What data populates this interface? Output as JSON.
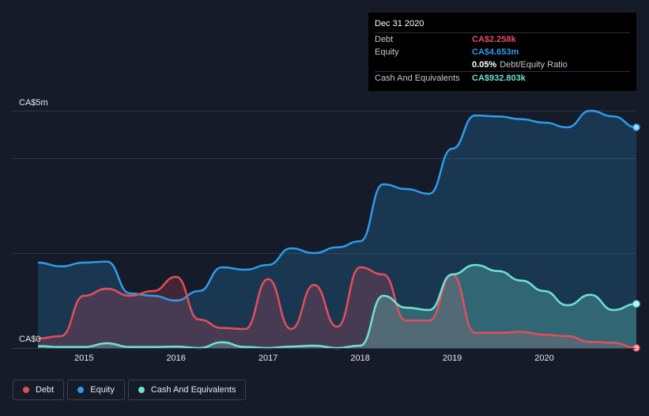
{
  "tooltip": {
    "date": "Dec 31 2020",
    "rows": [
      {
        "label": "Debt",
        "value": "CA$2.258k",
        "color": "#e64d5a"
      },
      {
        "label": "Equity",
        "value": "CA$4.653m",
        "color": "#2d9cea"
      },
      {
        "label": "",
        "value": "0.05%",
        "suffix": "Debt/Equity Ratio",
        "color": "#ffffff"
      },
      {
        "label": "Cash And Equivalents",
        "value": "CA$932.803k",
        "color": "#6ee3d1"
      }
    ]
  },
  "legend": [
    {
      "label": "Debt",
      "color": "#e64d5a"
    },
    {
      "label": "Equity",
      "color": "#2d9cea"
    },
    {
      "label": "Cash And Equivalents",
      "color": "#6ee3d1"
    }
  ],
  "chart_data": {
    "type": "area",
    "ylabel_top": "CA$5m",
    "ylabel_bottom": "CA$0",
    "ylim": [
      0,
      5
    ],
    "xlim": [
      2014.5,
      2021.0
    ],
    "x_ticks": [
      "2015",
      "2016",
      "2017",
      "2018",
      "2019",
      "2020"
    ],
    "x_tick_values": [
      2015,
      2016,
      2017,
      2018,
      2019,
      2020
    ],
    "units": "CA$ millions",
    "series": [
      {
        "name": "Equity",
        "color": "#2d9cea",
        "points": [
          [
            2014.5,
            1.8
          ],
          [
            2014.75,
            1.72
          ],
          [
            2015.0,
            1.8
          ],
          [
            2015.25,
            1.82
          ],
          [
            2015.5,
            1.15
          ],
          [
            2015.75,
            1.1
          ],
          [
            2016.0,
            1.0
          ],
          [
            2016.25,
            1.2
          ],
          [
            2016.5,
            1.7
          ],
          [
            2016.75,
            1.65
          ],
          [
            2017.0,
            1.75
          ],
          [
            2017.25,
            2.1
          ],
          [
            2017.5,
            2.0
          ],
          [
            2017.75,
            2.12
          ],
          [
            2018.0,
            2.25
          ],
          [
            2018.25,
            3.45
          ],
          [
            2018.5,
            3.35
          ],
          [
            2018.75,
            3.25
          ],
          [
            2019.0,
            4.2
          ],
          [
            2019.25,
            4.9
          ],
          [
            2019.5,
            4.88
          ],
          [
            2019.75,
            4.82
          ],
          [
            2020.0,
            4.75
          ],
          [
            2020.25,
            4.65
          ],
          [
            2020.5,
            5.0
          ],
          [
            2020.75,
            4.88
          ],
          [
            2021.0,
            4.65
          ]
        ]
      },
      {
        "name": "Debt",
        "color": "#e64d5a",
        "points": [
          [
            2014.5,
            0.2
          ],
          [
            2014.75,
            0.25
          ],
          [
            2015.0,
            1.1
          ],
          [
            2015.25,
            1.25
          ],
          [
            2015.5,
            1.1
          ],
          [
            2015.75,
            1.2
          ],
          [
            2016.0,
            1.5
          ],
          [
            2016.25,
            0.6
          ],
          [
            2016.5,
            0.42
          ],
          [
            2016.75,
            0.4
          ],
          [
            2017.0,
            1.45
          ],
          [
            2017.25,
            0.4
          ],
          [
            2017.5,
            1.33
          ],
          [
            2017.75,
            0.45
          ],
          [
            2018.0,
            1.7
          ],
          [
            2018.25,
            1.55
          ],
          [
            2018.5,
            0.58
          ],
          [
            2018.75,
            0.58
          ],
          [
            2019.0,
            1.55
          ],
          [
            2019.25,
            0.32
          ],
          [
            2019.5,
            0.32
          ],
          [
            2019.75,
            0.34
          ],
          [
            2020.0,
            0.28
          ],
          [
            2020.25,
            0.25
          ],
          [
            2020.5,
            0.13
          ],
          [
            2020.75,
            0.11
          ],
          [
            2021.0,
            0.0023
          ]
        ]
      },
      {
        "name": "Cash And Equivalents",
        "color": "#6ee3d1",
        "points": [
          [
            2014.5,
            0.04
          ],
          [
            2014.75,
            0.02
          ],
          [
            2015.0,
            0.02
          ],
          [
            2015.25,
            0.1
          ],
          [
            2015.5,
            0.02
          ],
          [
            2015.75,
            0.02
          ],
          [
            2016.0,
            0.03
          ],
          [
            2016.25,
            0.0
          ],
          [
            2016.5,
            0.12
          ],
          [
            2016.75,
            0.02
          ],
          [
            2017.0,
            0.0
          ],
          [
            2017.25,
            0.03
          ],
          [
            2017.5,
            0.05
          ],
          [
            2017.75,
            0.0
          ],
          [
            2018.0,
            0.05
          ],
          [
            2018.25,
            1.1
          ],
          [
            2018.5,
            0.85
          ],
          [
            2018.75,
            0.8
          ],
          [
            2019.0,
            1.55
          ],
          [
            2019.25,
            1.75
          ],
          [
            2019.5,
            1.62
          ],
          [
            2019.75,
            1.42
          ],
          [
            2020.0,
            1.2
          ],
          [
            2020.25,
            0.9
          ],
          [
            2020.5,
            1.12
          ],
          [
            2020.75,
            0.8
          ],
          [
            2021.0,
            0.93
          ]
        ]
      }
    ]
  }
}
